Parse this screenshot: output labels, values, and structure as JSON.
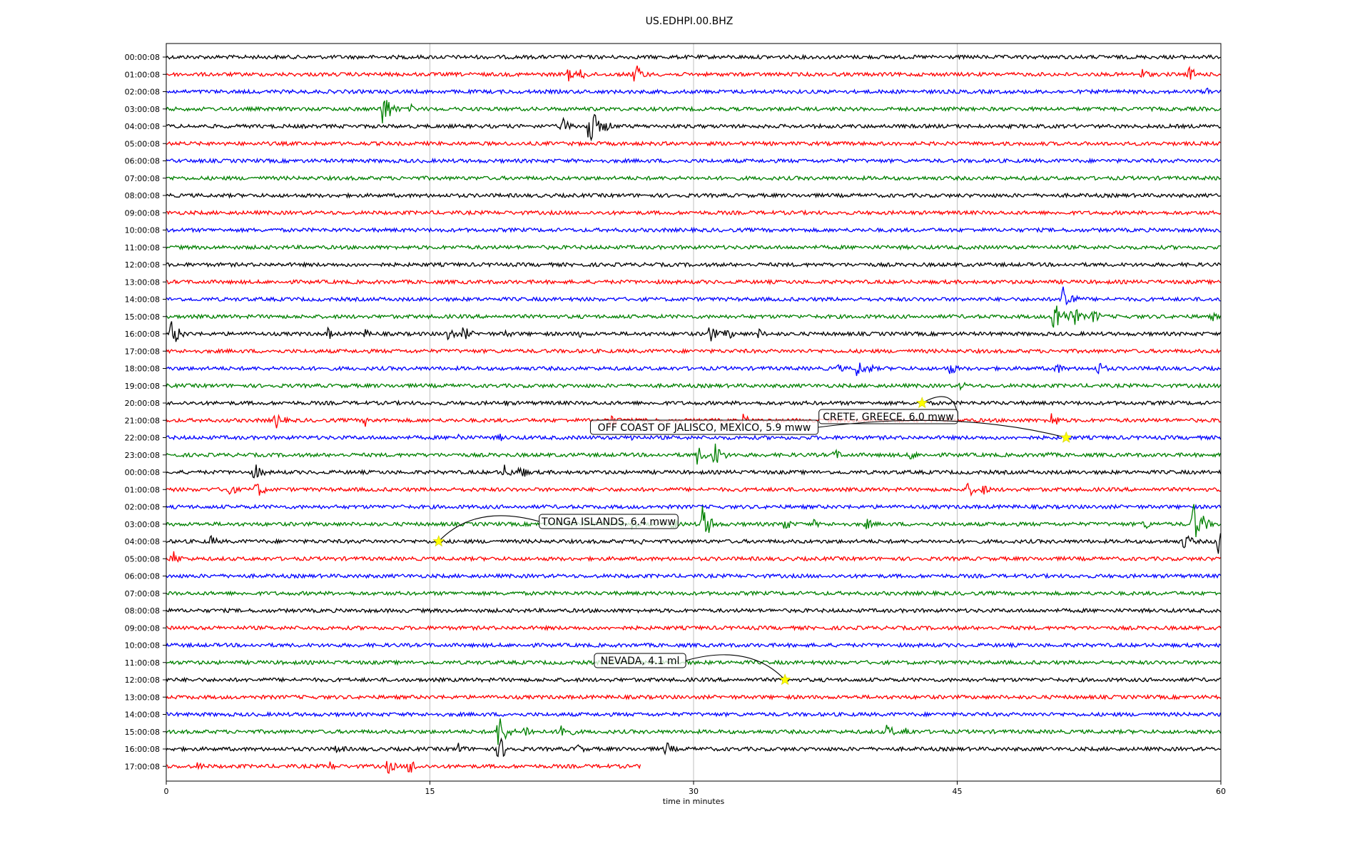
{
  "chart_data": {
    "type": "line",
    "title": "US.EDHPI.00.BHZ",
    "xlabel": "time in minutes",
    "xlim": [
      0,
      60
    ],
    "xticks": [
      0,
      15,
      30,
      45,
      60
    ],
    "x_tick_labels": [
      "0",
      "15",
      "30",
      "45",
      "60"
    ],
    "grid": "vertical at x ticks",
    "color_cycle": [
      "#000000",
      "#ff0000",
      "#0000ff",
      "#008000"
    ],
    "rows": [
      "00:00:08",
      "01:00:08",
      "02:00:08",
      "03:00:08",
      "04:00:08",
      "05:00:08",
      "06:00:08",
      "07:00:08",
      "08:00:08",
      "09:00:08",
      "10:00:08",
      "11:00:08",
      "12:00:08",
      "13:00:08",
      "14:00:08",
      "15:00:08",
      "16:00:08",
      "17:00:08",
      "18:00:08",
      "19:00:08",
      "20:00:08",
      "21:00:08",
      "22:00:08",
      "23:00:08",
      "00:00:08",
      "01:00:08",
      "02:00:08",
      "03:00:08",
      "04:00:08",
      "05:00:08",
      "06:00:08",
      "07:00:08",
      "08:00:08",
      "09:00:08",
      "10:00:08",
      "11:00:08",
      "12:00:08",
      "13:00:08",
      "14:00:08",
      "15:00:08",
      "16:00:08",
      "17:00:08"
    ],
    "last_row_end_minute": 27,
    "bursts": [
      {
        "row": 1,
        "minute": 22.8,
        "amp": 0.5
      },
      {
        "row": 1,
        "minute": 23.6,
        "amp": 0.4
      },
      {
        "row": 1,
        "minute": 26.6,
        "amp": 0.8
      },
      {
        "row": 1,
        "minute": 55.5,
        "amp": 0.4
      },
      {
        "row": 1,
        "minute": 58.2,
        "amp": 0.5
      },
      {
        "row": 2,
        "minute": 59.2,
        "amp": 0.3
      },
      {
        "row": 3,
        "minute": 12.3,
        "amp": 1.2
      },
      {
        "row": 3,
        "minute": 13.9,
        "amp": 0.3
      },
      {
        "row": 4,
        "minute": 22.5,
        "amp": 0.6
      },
      {
        "row": 4,
        "minute": 24.0,
        "amp": 1.6
      },
      {
        "row": 4,
        "minute": 25.0,
        "amp": 0.4
      },
      {
        "row": 14,
        "minute": 51.0,
        "amp": 1.2
      },
      {
        "row": 15,
        "minute": 50.5,
        "amp": 1.4
      },
      {
        "row": 15,
        "minute": 51.5,
        "amp": 0.8
      },
      {
        "row": 15,
        "minute": 52.7,
        "amp": 0.5
      },
      {
        "row": 15,
        "minute": 59.5,
        "amp": 0.3
      },
      {
        "row": 16,
        "minute": 0.3,
        "amp": 0.9
      },
      {
        "row": 16,
        "minute": 9.2,
        "amp": 0.4
      },
      {
        "row": 16,
        "minute": 11.3,
        "amp": 0.3
      },
      {
        "row": 16,
        "minute": 16.0,
        "amp": 0.5
      },
      {
        "row": 16,
        "minute": 16.9,
        "amp": 0.5
      },
      {
        "row": 16,
        "minute": 19.3,
        "amp": 0.3
      },
      {
        "row": 16,
        "minute": 23.4,
        "amp": 0.3
      },
      {
        "row": 16,
        "minute": 30.9,
        "amp": 0.6
      },
      {
        "row": 16,
        "minute": 31.8,
        "amp": 0.5
      },
      {
        "row": 16,
        "minute": 33.6,
        "amp": 0.4
      },
      {
        "row": 18,
        "minute": 38.2,
        "amp": 0.3
      },
      {
        "row": 18,
        "minute": 39.3,
        "amp": 0.6
      },
      {
        "row": 18,
        "minute": 40.0,
        "amp": 0.3
      },
      {
        "row": 18,
        "minute": 44.5,
        "amp": 0.5
      },
      {
        "row": 18,
        "minute": 50.6,
        "amp": 0.4
      },
      {
        "row": 18,
        "minute": 53.0,
        "amp": 0.5
      },
      {
        "row": 19,
        "minute": 45.2,
        "amp": 0.3
      },
      {
        "row": 20,
        "minute": 19.3,
        "amp": 0.2
      },
      {
        "row": 21,
        "minute": 6.2,
        "amp": 0.6
      },
      {
        "row": 21,
        "minute": 11.3,
        "amp": 0.4
      },
      {
        "row": 21,
        "minute": 25.2,
        "amp": 0.6
      },
      {
        "row": 21,
        "minute": 32.8,
        "amp": 0.4
      },
      {
        "row": 21,
        "minute": 50.3,
        "amp": 0.6
      },
      {
        "row": 21,
        "minute": 60.0,
        "amp": 0.5
      },
      {
        "row": 22,
        "minute": 16.6,
        "amp": 0.3
      },
      {
        "row": 22,
        "minute": 18.9,
        "amp": 0.3
      },
      {
        "row": 22,
        "minute": 26.5,
        "amp": 0.3
      },
      {
        "row": 23,
        "minute": 30.2,
        "amp": 0.6
      },
      {
        "row": 23,
        "minute": 31.1,
        "amp": 1.0
      },
      {
        "row": 23,
        "minute": 38.0,
        "amp": 0.4
      },
      {
        "row": 23,
        "minute": 42.3,
        "amp": 0.4
      },
      {
        "row": 23,
        "minute": 50.0,
        "amp": 0.3
      },
      {
        "row": 24,
        "minute": 5.0,
        "amp": 0.6
      },
      {
        "row": 24,
        "minute": 19.2,
        "amp": 0.5
      },
      {
        "row": 24,
        "minute": 20.1,
        "amp": 0.5
      },
      {
        "row": 25,
        "minute": 3.5,
        "amp": 0.5
      },
      {
        "row": 25,
        "minute": 5.1,
        "amp": 0.6
      },
      {
        "row": 25,
        "minute": 45.6,
        "amp": 0.5
      },
      {
        "row": 25,
        "minute": 46.4,
        "amp": 0.4
      },
      {
        "row": 27,
        "minute": 26.5,
        "amp": 0.3
      },
      {
        "row": 27,
        "minute": 28.8,
        "amp": 0.4
      },
      {
        "row": 27,
        "minute": 30.5,
        "amp": 1.2
      },
      {
        "row": 27,
        "minute": 35.1,
        "amp": 0.5
      },
      {
        "row": 27,
        "minute": 36.8,
        "amp": 0.3
      },
      {
        "row": 27,
        "minute": 39.8,
        "amp": 0.4
      },
      {
        "row": 27,
        "minute": 55.6,
        "amp": 0.4
      },
      {
        "row": 27,
        "minute": 58.4,
        "amp": 1.4
      },
      {
        "row": 27,
        "minute": 59.0,
        "amp": 0.5
      },
      {
        "row": 28,
        "minute": 2.5,
        "amp": 0.4
      },
      {
        "row": 28,
        "minute": 27.0,
        "amp": 0.2
      },
      {
        "row": 28,
        "minute": 57.9,
        "amp": 0.6
      },
      {
        "row": 28,
        "minute": 59.8,
        "amp": 1.2
      },
      {
        "row": 29,
        "minute": 0.3,
        "amp": 0.6
      },
      {
        "row": 36,
        "minute": 35.2,
        "amp": 0.2
      },
      {
        "row": 39,
        "minute": 18.9,
        "amp": 1.2
      },
      {
        "row": 39,
        "minute": 20.4,
        "amp": 0.5
      },
      {
        "row": 39,
        "minute": 22.4,
        "amp": 0.9
      },
      {
        "row": 39,
        "minute": 41.0,
        "amp": 0.5
      },
      {
        "row": 39,
        "minute": 42.0,
        "amp": 0.4
      },
      {
        "row": 40,
        "minute": 9.7,
        "amp": 0.4
      },
      {
        "row": 40,
        "minute": 16.6,
        "amp": 0.4
      },
      {
        "row": 40,
        "minute": 18.9,
        "amp": 0.9
      },
      {
        "row": 40,
        "minute": 23.3,
        "amp": 0.4
      },
      {
        "row": 40,
        "minute": 28.4,
        "amp": 0.5
      },
      {
        "row": 41,
        "minute": 1.8,
        "amp": 0.3
      },
      {
        "row": 41,
        "minute": 9.2,
        "amp": 0.4
      },
      {
        "row": 41,
        "minute": 12.6,
        "amp": 0.5
      },
      {
        "row": 41,
        "minute": 13.8,
        "amp": 0.6
      }
    ],
    "events": [
      {
        "label": "CRETE, GREECE, 6.0 mww",
        "row": 20,
        "minute": 43.0
      },
      {
        "label": "OFF COAST OF JALISCO, MEXICO, 5.9 mww",
        "row": 22,
        "minute": 51.2
      },
      {
        "label": "TONGA ISLANDS, 6.4 mww",
        "row": 28,
        "minute": 15.5
      },
      {
        "label": "NEVADA, 4.1 ml",
        "row": 36,
        "minute": 35.2
      }
    ]
  }
}
